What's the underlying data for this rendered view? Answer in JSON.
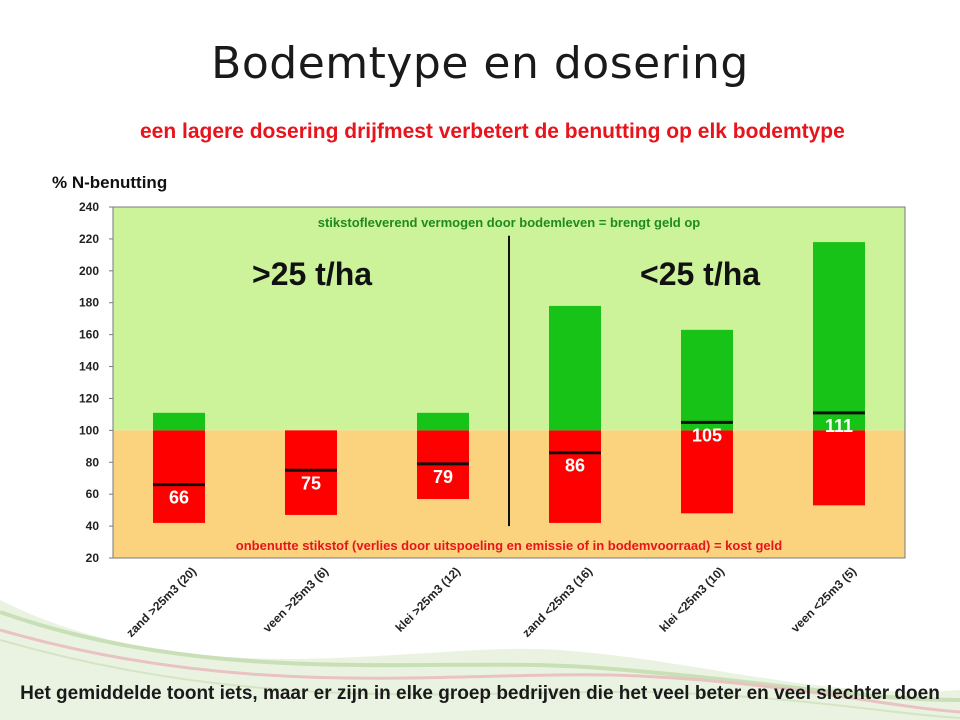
{
  "slide": {
    "title": "Bodemtype en dosering",
    "subtitle": "een lagere dosering drijfmest verbetert de benutting op elk bodemtype",
    "footer": "Het gemiddelde toont iets, maar er zijn in elke groep bedrijven die het veel beter en veel slechter doen"
  },
  "colors": {
    "title": "#1a1a1a",
    "subtitle": "#e8141c",
    "upper_band": "#ccf29a",
    "lower_band": "#fbd37f",
    "bar_red": "#ff0000",
    "bar_green": "#16c316",
    "mean_line": "#111111",
    "upper_band_text": "#1f8a1f",
    "lower_band_text": "#e8141c"
  },
  "chart_data": {
    "type": "bar",
    "ylabel": "% N-benutting",
    "ylim": [
      20,
      240
    ],
    "yticks": [
      20,
      40,
      60,
      80,
      100,
      120,
      140,
      160,
      180,
      200,
      220,
      240
    ],
    "grid": false,
    "reference_value": 100,
    "categories": [
      "zand >25m3 (20)",
      "veen >25m3 (6)",
      "klei >25m3 (12)",
      "zand <25m3 (16)",
      "klei <25m3 (10)",
      "veen <25m3 (5)"
    ],
    "series": [
      {
        "name": "min",
        "values": [
          42,
          47,
          57,
          42,
          48,
          53
        ]
      },
      {
        "name": "max",
        "values": [
          111,
          100,
          111,
          178,
          163,
          218
        ]
      },
      {
        "name": "mean",
        "values": [
          66,
          75,
          79,
          86,
          105,
          111
        ]
      }
    ],
    "mean_labels": [
      "66",
      "75",
      "79",
      "86",
      "105",
      "111"
    ],
    "groups": [
      {
        "label": ">25 t/ha",
        "categories": [
          0,
          1,
          2
        ]
      },
      {
        "label": "<25 t/ha",
        "categories": [
          3,
          4,
          5
        ]
      }
    ],
    "upper_band_label": "stikstofleverend vermogen door bodemleven = brengt geld op",
    "lower_band_label": "onbenutte stikstof (verlies door uitspoeling en emissie of in bodemvoorraad) = kost geld"
  }
}
